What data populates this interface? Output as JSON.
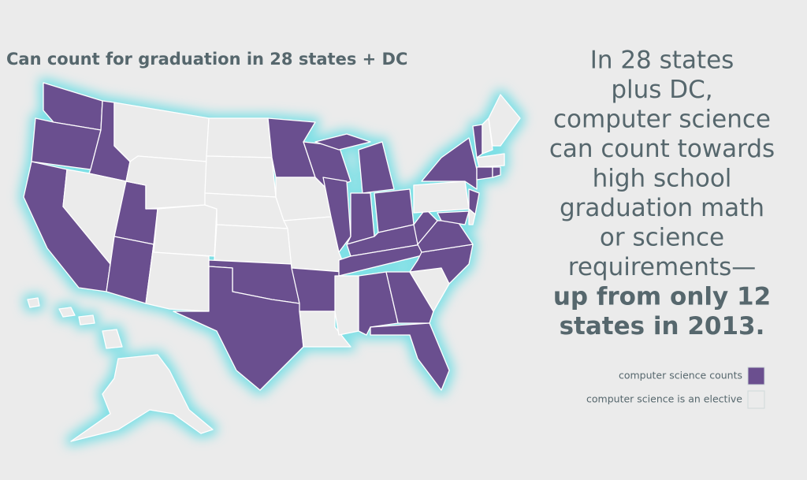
{
  "header": {
    "title": "Can count for graduation in 28 states + DC"
  },
  "headline": {
    "lines": [
      "In 28 states",
      "plus DC,",
      "computer science",
      "can count towards",
      "high school",
      "graduation math",
      "or science",
      "requirements—"
    ],
    "bold_lines": [
      "up from only 12",
      "states in 2013."
    ]
  },
  "legend": {
    "items": [
      {
        "label": "computer science counts",
        "color": "#6b4f8f"
      },
      {
        "label": "computer science is an elective",
        "color": "#ebebeb"
      }
    ]
  }
}
